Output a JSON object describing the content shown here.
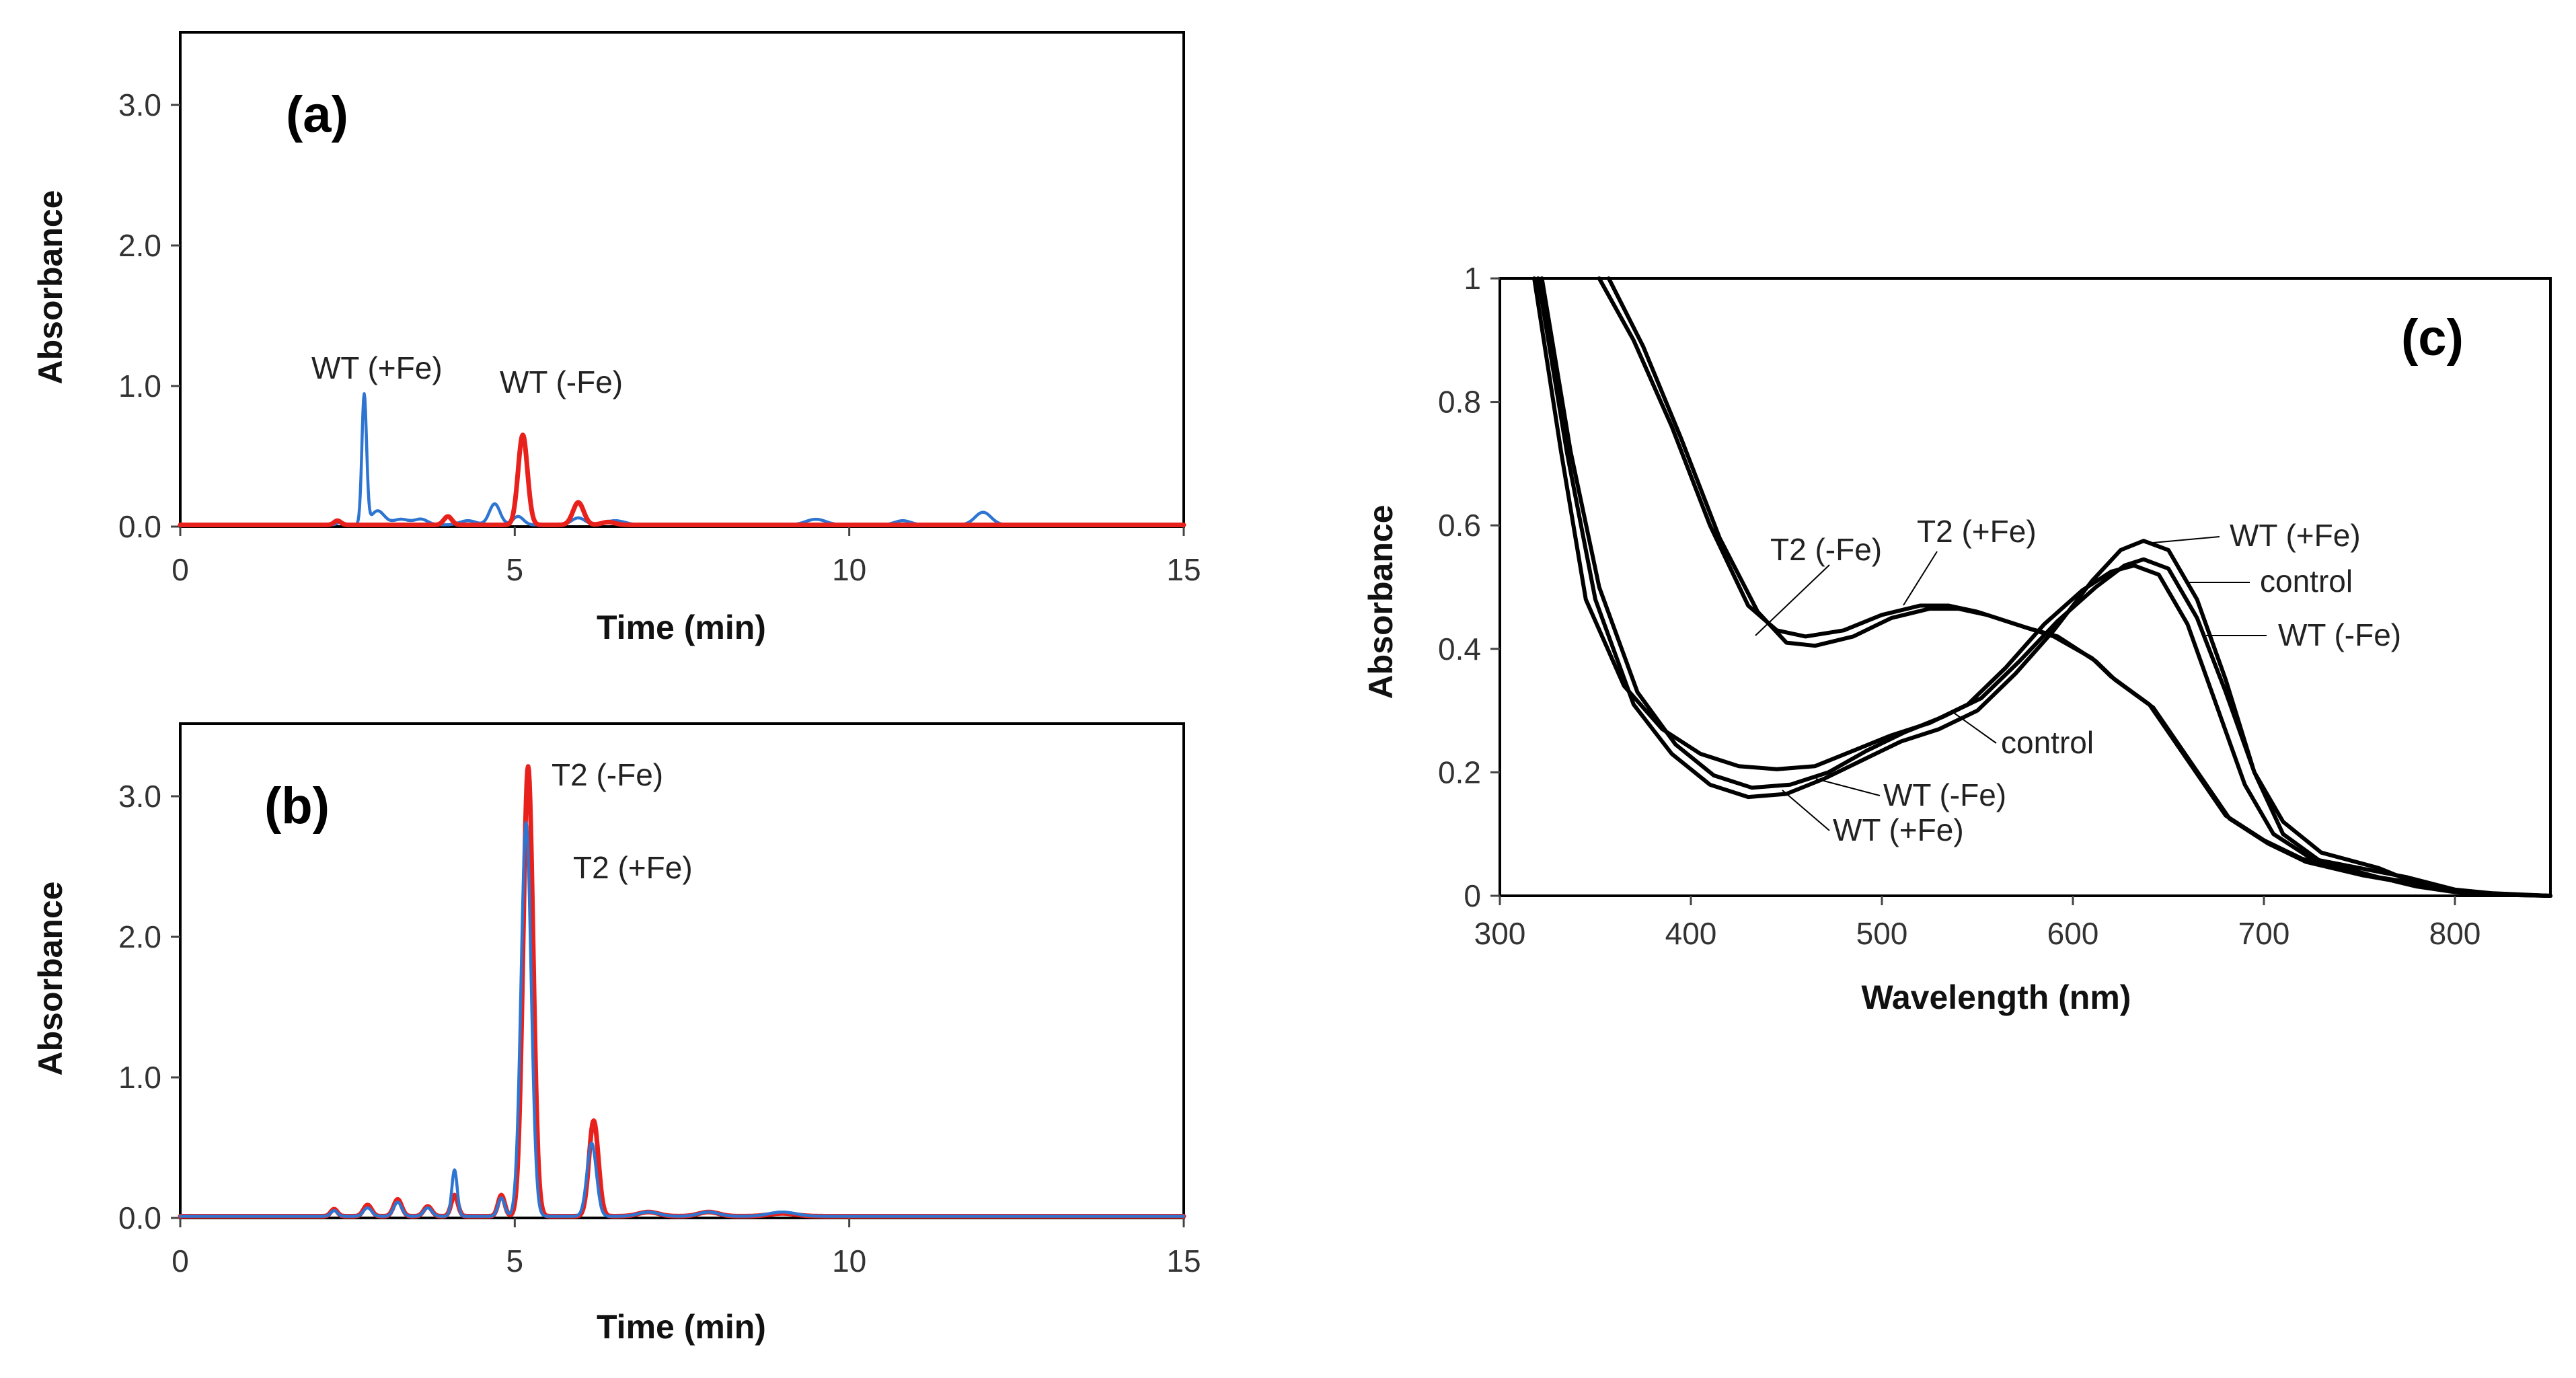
{
  "chart_data": [
    {
      "id": "a",
      "type": "line",
      "panel_label": "(a)",
      "xlabel": "Time (min)",
      "ylabel": "Absorbance",
      "xlim": [
        0,
        15
      ],
      "ylim": [
        0,
        3.5
      ],
      "xticks": [
        "0",
        "5",
        "10",
        "15"
      ],
      "yticks": [
        "0.0",
        "1.0",
        "2.0",
        "3.0"
      ],
      "grid": false,
      "series": [
        {
          "name": "WT (+Fe)",
          "color": "#2e75d2",
          "peaks": [
            [
              2.4,
              0.02,
              0.05
            ],
            [
              2.75,
              0.92,
              0.035
            ],
            [
              2.95,
              0.1,
              0.1
            ],
            [
              3.3,
              0.04,
              0.12
            ],
            [
              3.6,
              0.04,
              0.1
            ],
            [
              4.3,
              0.03,
              0.12
            ],
            [
              4.7,
              0.15,
              0.08
            ],
            [
              5.05,
              0.06,
              0.08
            ],
            [
              5.95,
              0.05,
              0.1
            ],
            [
              6.5,
              0.03,
              0.15
            ],
            [
              9.5,
              0.04,
              0.15
            ],
            [
              10.8,
              0.03,
              0.12
            ],
            [
              12.0,
              0.09,
              0.12
            ]
          ]
        },
        {
          "name": "WT (-Fe)",
          "color": "#e8211c",
          "peaks": [
            [
              2.35,
              0.03,
              0.05
            ],
            [
              4.0,
              0.06,
              0.06
            ],
            [
              5.12,
              0.64,
              0.07
            ],
            [
              5.95,
              0.16,
              0.08
            ],
            [
              6.4,
              0.02,
              0.1
            ]
          ]
        }
      ],
      "annotations": [
        {
          "text": "WT (+Fe)"
        },
        {
          "text": "WT (-Fe)"
        }
      ]
    },
    {
      "id": "b",
      "type": "line",
      "panel_label": "(b)",
      "xlabel": "Time (min)",
      "ylabel": "Absorbance",
      "xlim": [
        0,
        15
      ],
      "ylim": [
        0,
        3.5
      ],
      "xticks": [
        "0",
        "5",
        "10",
        "15"
      ],
      "yticks": [
        "0.0",
        "1.0",
        "2.0",
        "3.0"
      ],
      "grid": false,
      "series": [
        {
          "name": "T2 (-Fe)",
          "color": "#e8211c",
          "peaks": [
            [
              2.3,
              0.05,
              0.05
            ],
            [
              2.8,
              0.08,
              0.06
            ],
            [
              3.25,
              0.12,
              0.06
            ],
            [
              3.7,
              0.07,
              0.06
            ],
            [
              4.1,
              0.15,
              0.05
            ],
            [
              4.8,
              0.15,
              0.05
            ],
            [
              5.2,
              3.2,
              0.075
            ],
            [
              6.18,
              0.68,
              0.07
            ],
            [
              7.0,
              0.03,
              0.15
            ],
            [
              7.9,
              0.03,
              0.15
            ],
            [
              9.0,
              0.02,
              0.2
            ]
          ]
        },
        {
          "name": "T2 (+Fe)",
          "color": "#2e75d2",
          "peaks": [
            [
              2.3,
              0.04,
              0.05
            ],
            [
              2.8,
              0.06,
              0.06
            ],
            [
              3.25,
              0.1,
              0.06
            ],
            [
              3.7,
              0.06,
              0.06
            ],
            [
              4.1,
              0.33,
              0.04
            ],
            [
              4.8,
              0.13,
              0.05
            ],
            [
              5.17,
              2.8,
              0.075
            ],
            [
              6.15,
              0.52,
              0.07
            ],
            [
              7.0,
              0.03,
              0.15
            ],
            [
              7.9,
              0.03,
              0.15
            ],
            [
              9.0,
              0.03,
              0.2
            ]
          ]
        }
      ],
      "annotations": [
        {
          "text": "T2 (-Fe)"
        },
        {
          "text": "T2 (+Fe)"
        }
      ]
    },
    {
      "id": "c",
      "type": "line",
      "panel_label": "(c)",
      "xlabel": "Wavelength (nm)",
      "ylabel": "Absorbance",
      "xlim": [
        300,
        850
      ],
      "ylim": [
        0,
        1
      ],
      "xticks": [
        "300",
        "400",
        "500",
        "600",
        "700",
        "800"
      ],
      "yticks": [
        "0",
        "0.2",
        "0.4",
        "0.6",
        "0.8",
        "1"
      ],
      "grid": false,
      "series": [
        {
          "name": "T2 (-Fe)",
          "color": "#000000",
          "points": [
            [
              352,
              1.0
            ],
            [
              370,
              0.9
            ],
            [
              390,
              0.76
            ],
            [
              410,
              0.6
            ],
            [
              430,
              0.47
            ],
            [
              445,
              0.43
            ],
            [
              460,
              0.42
            ],
            [
              480,
              0.43
            ],
            [
              500,
              0.455
            ],
            [
              520,
              0.47
            ],
            [
              535,
              0.47
            ],
            [
              550,
              0.46
            ],
            [
              570,
              0.44
            ],
            [
              590,
              0.42
            ],
            [
              610,
              0.385
            ],
            [
              620,
              0.355
            ],
            [
              640,
              0.31
            ],
            [
              660,
              0.22
            ],
            [
              680,
              0.13
            ],
            [
              700,
              0.09
            ],
            [
              720,
              0.06
            ],
            [
              750,
              0.035
            ],
            [
              780,
              0.02
            ],
            [
              800,
              0.01
            ],
            [
              820,
              0.004
            ],
            [
              850,
              0.0
            ]
          ]
        },
        {
          "name": "T2 (+Fe)",
          "color": "#000000",
          "points": [
            [
              357,
              1.0
            ],
            [
              375,
              0.89
            ],
            [
              395,
              0.74
            ],
            [
              415,
              0.58
            ],
            [
              435,
              0.46
            ],
            [
              450,
              0.41
            ],
            [
              465,
              0.405
            ],
            [
              485,
              0.42
            ],
            [
              505,
              0.45
            ],
            [
              525,
              0.465
            ],
            [
              540,
              0.465
            ],
            [
              555,
              0.455
            ],
            [
              575,
              0.435
            ],
            [
              592,
              0.42
            ],
            [
              612,
              0.38
            ],
            [
              622,
              0.35
            ],
            [
              642,
              0.305
            ],
            [
              662,
              0.215
            ],
            [
              682,
              0.125
            ],
            [
              702,
              0.085
            ],
            [
              722,
              0.055
            ],
            [
              752,
              0.033
            ],
            [
              780,
              0.018
            ],
            [
              800,
              0.009
            ],
            [
              820,
              0.003
            ],
            [
              850,
              0.0
            ]
          ]
        },
        {
          "name": "WT (+Fe)",
          "color": "#000000",
          "points": [
            [
              320,
              1.0
            ],
            [
              335,
              0.72
            ],
            [
              350,
              0.48
            ],
            [
              370,
              0.31
            ],
            [
              390,
              0.23
            ],
            [
              410,
              0.18
            ],
            [
              430,
              0.16
            ],
            [
              450,
              0.165
            ],
            [
              470,
              0.19
            ],
            [
              490,
              0.22
            ],
            [
              510,
              0.25
            ],
            [
              530,
              0.27
            ],
            [
              550,
              0.3
            ],
            [
              570,
              0.36
            ],
            [
              590,
              0.43
            ],
            [
              610,
              0.51
            ],
            [
              625,
              0.56
            ],
            [
              637,
              0.575
            ],
            [
              650,
              0.56
            ],
            [
              665,
              0.48
            ],
            [
              680,
              0.35
            ],
            [
              695,
              0.2
            ],
            [
              710,
              0.1
            ],
            [
              730,
              0.055
            ],
            [
              760,
              0.03
            ],
            [
              780,
              0.015
            ],
            [
              800,
              0.006
            ],
            [
              820,
              0.002
            ],
            [
              850,
              0.0
            ]
          ]
        },
        {
          "name": "WT (-Fe)",
          "color": "#000000",
          "points": [
            [
              322,
              1.0
            ],
            [
              337,
              0.72
            ],
            [
              352,
              0.5
            ],
            [
              372,
              0.33
            ],
            [
              392,
              0.245
            ],
            [
              412,
              0.195
            ],
            [
              432,
              0.175
            ],
            [
              452,
              0.18
            ],
            [
              472,
              0.2
            ],
            [
              492,
              0.235
            ],
            [
              512,
              0.265
            ],
            [
              532,
              0.29
            ],
            [
              552,
              0.32
            ],
            [
              572,
              0.38
            ],
            [
              592,
              0.445
            ],
            [
              612,
              0.5
            ],
            [
              627,
              0.535
            ],
            [
              637,
              0.545
            ],
            [
              650,
              0.53
            ],
            [
              665,
              0.45
            ],
            [
              680,
              0.33
            ],
            [
              695,
              0.2
            ],
            [
              710,
              0.12
            ],
            [
              730,
              0.07
            ],
            [
              760,
              0.045
            ],
            [
              780,
              0.02
            ],
            [
              800,
              0.008
            ],
            [
              820,
              0.002
            ],
            [
              850,
              0.0
            ]
          ]
        },
        {
          "name": "control",
          "color": "#000000",
          "points": [
            [
              318,
              1.0
            ],
            [
              332,
              0.72
            ],
            [
              345,
              0.48
            ],
            [
              365,
              0.34
            ],
            [
              385,
              0.27
            ],
            [
              405,
              0.23
            ],
            [
              425,
              0.21
            ],
            [
              445,
              0.205
            ],
            [
              465,
              0.21
            ],
            [
              485,
              0.235
            ],
            [
              505,
              0.26
            ],
            [
              525,
              0.28
            ],
            [
              545,
              0.31
            ],
            [
              565,
              0.37
            ],
            [
              585,
              0.44
            ],
            [
              605,
              0.495
            ],
            [
              620,
              0.525
            ],
            [
              632,
              0.535
            ],
            [
              645,
              0.52
            ],
            [
              660,
              0.44
            ],
            [
              675,
              0.31
            ],
            [
              690,
              0.18
            ],
            [
              705,
              0.1
            ],
            [
              725,
              0.06
            ],
            [
              750,
              0.045
            ],
            [
              775,
              0.03
            ],
            [
              800,
              0.01
            ],
            [
              820,
              0.003
            ],
            [
              850,
              0.0
            ]
          ]
        }
      ],
      "annotations": [
        {
          "text": "T2 (-Fe)"
        },
        {
          "text": "T2 (+Fe)"
        },
        {
          "text": "WT (+Fe)"
        },
        {
          "text": "control"
        },
        {
          "text": "WT (-Fe)"
        },
        {
          "text": "control"
        },
        {
          "text": "WT (-Fe)"
        },
        {
          "text": "WT (+Fe)"
        }
      ]
    }
  ]
}
